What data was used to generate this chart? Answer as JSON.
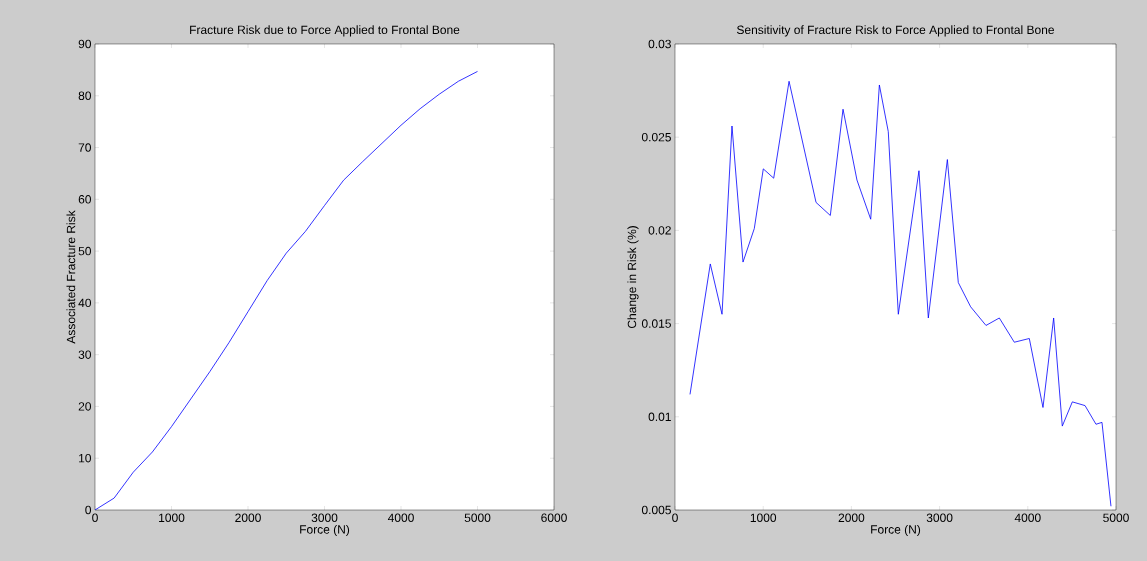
{
  "chart_data": [
    {
      "type": "line",
      "title": "Fracture Risk due to Force Applied to Frontal Bone",
      "xlabel": "Force (N)",
      "ylabel": "Associated Fracture Risk",
      "color": "#0000ff",
      "x": [
        0,
        250,
        500,
        750,
        1000,
        1250,
        1500,
        1750,
        2000,
        2250,
        2500,
        2750,
        3000,
        3250,
        3500,
        3750,
        4000,
        4250,
        4500,
        4750,
        5000
      ],
      "values": [
        0,
        2.3,
        7.3,
        11.2,
        16.1,
        21.4,
        26.7,
        32.3,
        38.3,
        44.3,
        49.6,
        53.8,
        58.8,
        63.7,
        67.3,
        70.8,
        74.3,
        77.5,
        80.3,
        82.8,
        84.7
      ],
      "xlim": [
        0,
        6000
      ],
      "ylim": [
        0,
        90
      ],
      "xticks": [
        0,
        1000,
        2000,
        3000,
        4000,
        5000,
        6000
      ],
      "yticks": [
        0,
        10,
        20,
        30,
        40,
        50,
        60,
        70,
        80,
        90
      ]
    },
    {
      "type": "line",
      "title": "Sensitivity of Fracture Risk to Force Applied to Frontal Bone",
      "xlabel": "Force (N)",
      "ylabel": "Change in Risk (%)",
      "color": "#0000ff",
      "x": [
        170,
        400,
        533,
        646,
        771,
        899,
        1001,
        1119,
        1293,
        1599,
        1761,
        1905,
        2063,
        2219,
        2317,
        2418,
        2532,
        2766,
        2872,
        3088,
        3212,
        3352,
        3526,
        3677,
        3847,
        4017,
        4172,
        4293,
        4391,
        4505,
        4649,
        4773,
        4841,
        4943
      ],
      "values": [
        0.0112,
        0.0182,
        0.0155,
        0.0256,
        0.0183,
        0.0201,
        0.0233,
        0.0228,
        0.028,
        0.0215,
        0.0208,
        0.0265,
        0.0227,
        0.0206,
        0.0278,
        0.0253,
        0.0155,
        0.0232,
        0.0153,
        0.0238,
        0.0172,
        0.0159,
        0.0149,
        0.0153,
        0.014,
        0.0142,
        0.0105,
        0.0153,
        0.0095,
        0.0108,
        0.0106,
        0.0096,
        0.0097,
        0.0052
      ],
      "xlim": [
        0,
        5000
      ],
      "ylim": [
        0.005,
        0.03
      ],
      "xticks": [
        0,
        1000,
        2000,
        3000,
        4000,
        5000
      ],
      "yticks": [
        0.005,
        0.01,
        0.015,
        0.02,
        0.025,
        0.03
      ]
    }
  ]
}
